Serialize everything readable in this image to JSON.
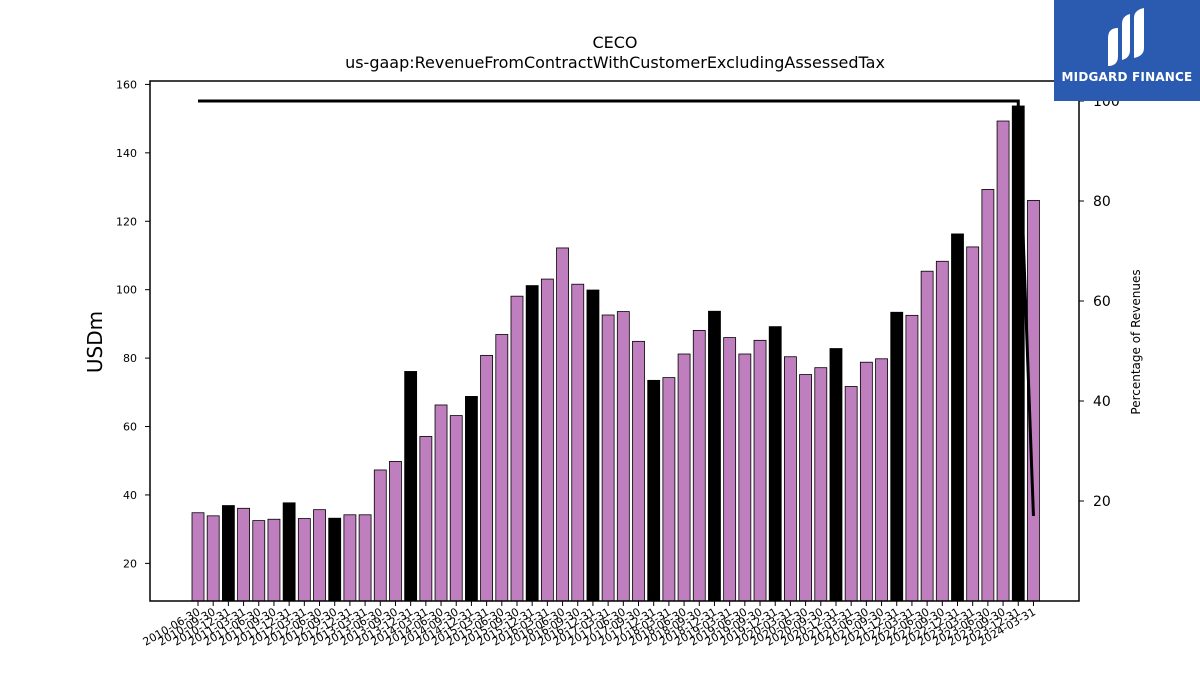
{
  "chart_data": {
    "type": "bar",
    "title": "CECO",
    "subtitle": "us-gaap:RevenueFromContractWithCustomerExcludingAssessedTax",
    "ylabel": "USDm",
    "ylabel_right": "Percentage of Revenues",
    "ylim": [
      9,
      161
    ],
    "ylim_right": [
      0,
      104
    ],
    "yticks": [
      20,
      40,
      60,
      80,
      100,
      120,
      140,
      160
    ],
    "yticks_right": [
      20,
      40,
      60,
      80,
      100
    ],
    "categories": [
      "2010-06-30",
      "2010-09-30",
      "2010-12-31",
      "2011-03-31",
      "2011-06-30",
      "2011-09-30",
      "2011-12-31",
      "2012-03-31",
      "2012-06-30",
      "2012-09-30",
      "2012-12-31",
      "2013-03-31",
      "2013-06-30",
      "2013-09-30",
      "2013-12-31",
      "2014-03-31",
      "2014-06-30",
      "2014-09-30",
      "2014-12-31",
      "2015-03-31",
      "2015-06-30",
      "2015-09-30",
      "2015-12-31",
      "2016-03-31",
      "2016-06-30",
      "2016-09-30",
      "2016-12-31",
      "2017-03-31",
      "2017-06-30",
      "2017-09-30",
      "2017-12-31",
      "2018-03-31",
      "2018-06-30",
      "2018-09-30",
      "2018-12-31",
      "2019-03-31",
      "2019-06-30",
      "2019-09-30",
      "2019-12-31",
      "2020-03-31",
      "2020-06-30",
      "2020-09-30",
      "2020-12-31",
      "2021-03-31",
      "2021-06-30",
      "2021-09-30",
      "2021-12-31",
      "2022-03-31",
      "2022-06-30",
      "2022-09-30",
      "2022-12-31",
      "2023-03-31",
      "2023-06-30",
      "2023-09-30",
      "2023-12-31",
      "2024-03-31"
    ],
    "values": [
      34.8,
      33.9,
      36.9,
      36.1,
      32.5,
      32.9,
      37.7,
      33.1,
      35.7,
      33.2,
      34.2,
      34.2,
      47.3,
      49.8,
      76.1,
      57.1,
      66.3,
      63.2,
      68.8,
      80.8,
      86.9,
      98.1,
      101.2,
      103.1,
      112.2,
      101.6,
      99.9,
      92.6,
      93.6,
      84.9,
      73.5,
      74.3,
      81.2,
      88.1,
      93.7,
      86.0,
      81.2,
      85.2,
      89.2,
      80.4,
      75.2,
      77.2,
      82.8,
      71.7,
      78.8,
      79.8,
      93.4,
      92.5,
      105.4,
      108.3,
      116.3,
      112.5,
      129.3,
      149.3,
      153.7,
      126.1
    ],
    "highlight": [
      2,
      6,
      9,
      14,
      18,
      22,
      26,
      30,
      34,
      38,
      42,
      46,
      50,
      54
    ],
    "bar_color": "#bf7fbf",
    "highlight_color": "#000000",
    "percentage_line": {
      "x_start_index": 0,
      "x_end_index": 54,
      "y_flat": 100,
      "x_final_index": 55,
      "y_final": 17
    }
  },
  "logo": {
    "text": "MIDGARD FINANCE"
  }
}
